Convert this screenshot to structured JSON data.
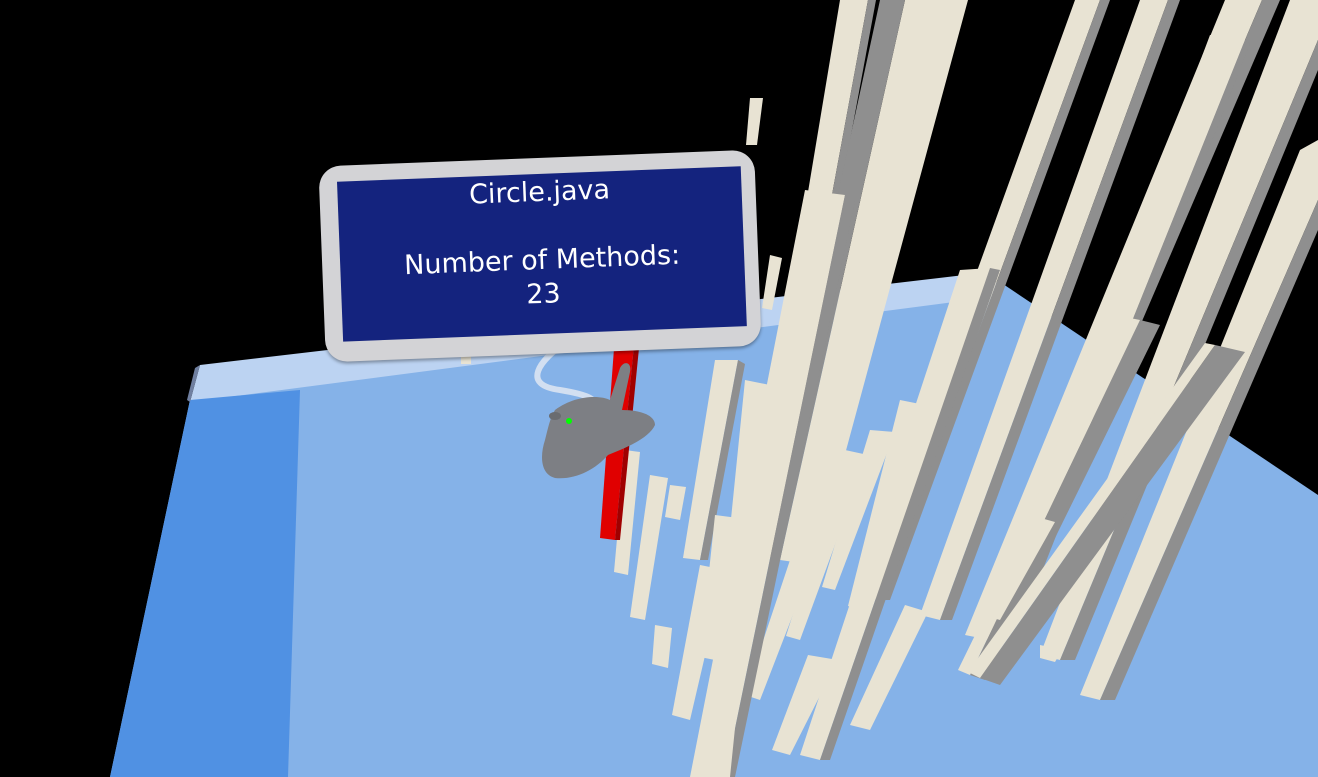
{
  "info_panel": {
    "file_name": "Circle.java",
    "metric_label": "Number of Methods:",
    "metric_value": "23"
  },
  "scene": {
    "colors": {
      "background": "#000000",
      "platform_top": "#85b2e8",
      "platform_far_edge": "#bcd3f2",
      "platform_left_edge": "#5091e3",
      "building_light": "#e8e3d3",
      "building_shade": "#8f8f8f",
      "selected_building": "#e00000",
      "panel_frame": "#d3d3d6",
      "panel_screen": "#14237e",
      "hand": "#7d7f84",
      "hand_pointer": "#00ff00"
    },
    "icons": [
      "vr-hand-pointer-icon"
    ]
  }
}
